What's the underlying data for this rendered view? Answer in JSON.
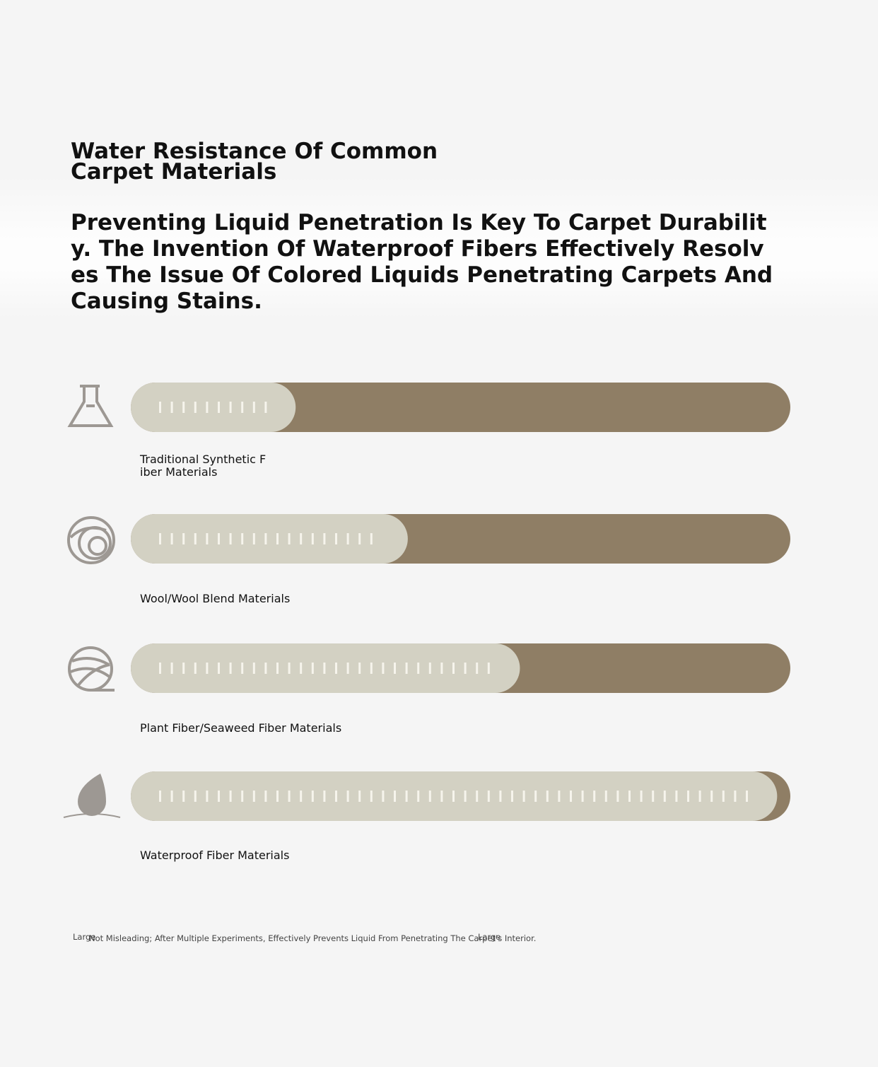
{
  "chart_data": {
    "type": "bar",
    "orientation": "horizontal",
    "title": "Water Resistance Of Common Carpet Materials",
    "subtitle": "Preventing Liquid Penetration Is Key To Carpet Durability. The Invention Of Waterproof Fibers Effectively Resolves The Issue Of Colored Liquids Penetrating Carpets And Causing Stains.",
    "categories": [
      "Traditional Synthetic Fiber Materials",
      "Wool/Wool Blend Materials",
      "Plant Fiber/Seaweed Fiber Materials",
      "Waterproof Fiber Materials"
    ],
    "values": [
      25,
      42,
      59,
      98
    ],
    "xlim": [
      0,
      100
    ],
    "color": "#d3d1c3",
    "track_color": "#8f7e65",
    "footnote": "Not Misleading; After Multiple Experiments, Effectively Prevents Liquid From Penetrating The Carpet's Interior.",
    "footnote_marks": [
      "Large",
      "Large"
    ]
  }
}
